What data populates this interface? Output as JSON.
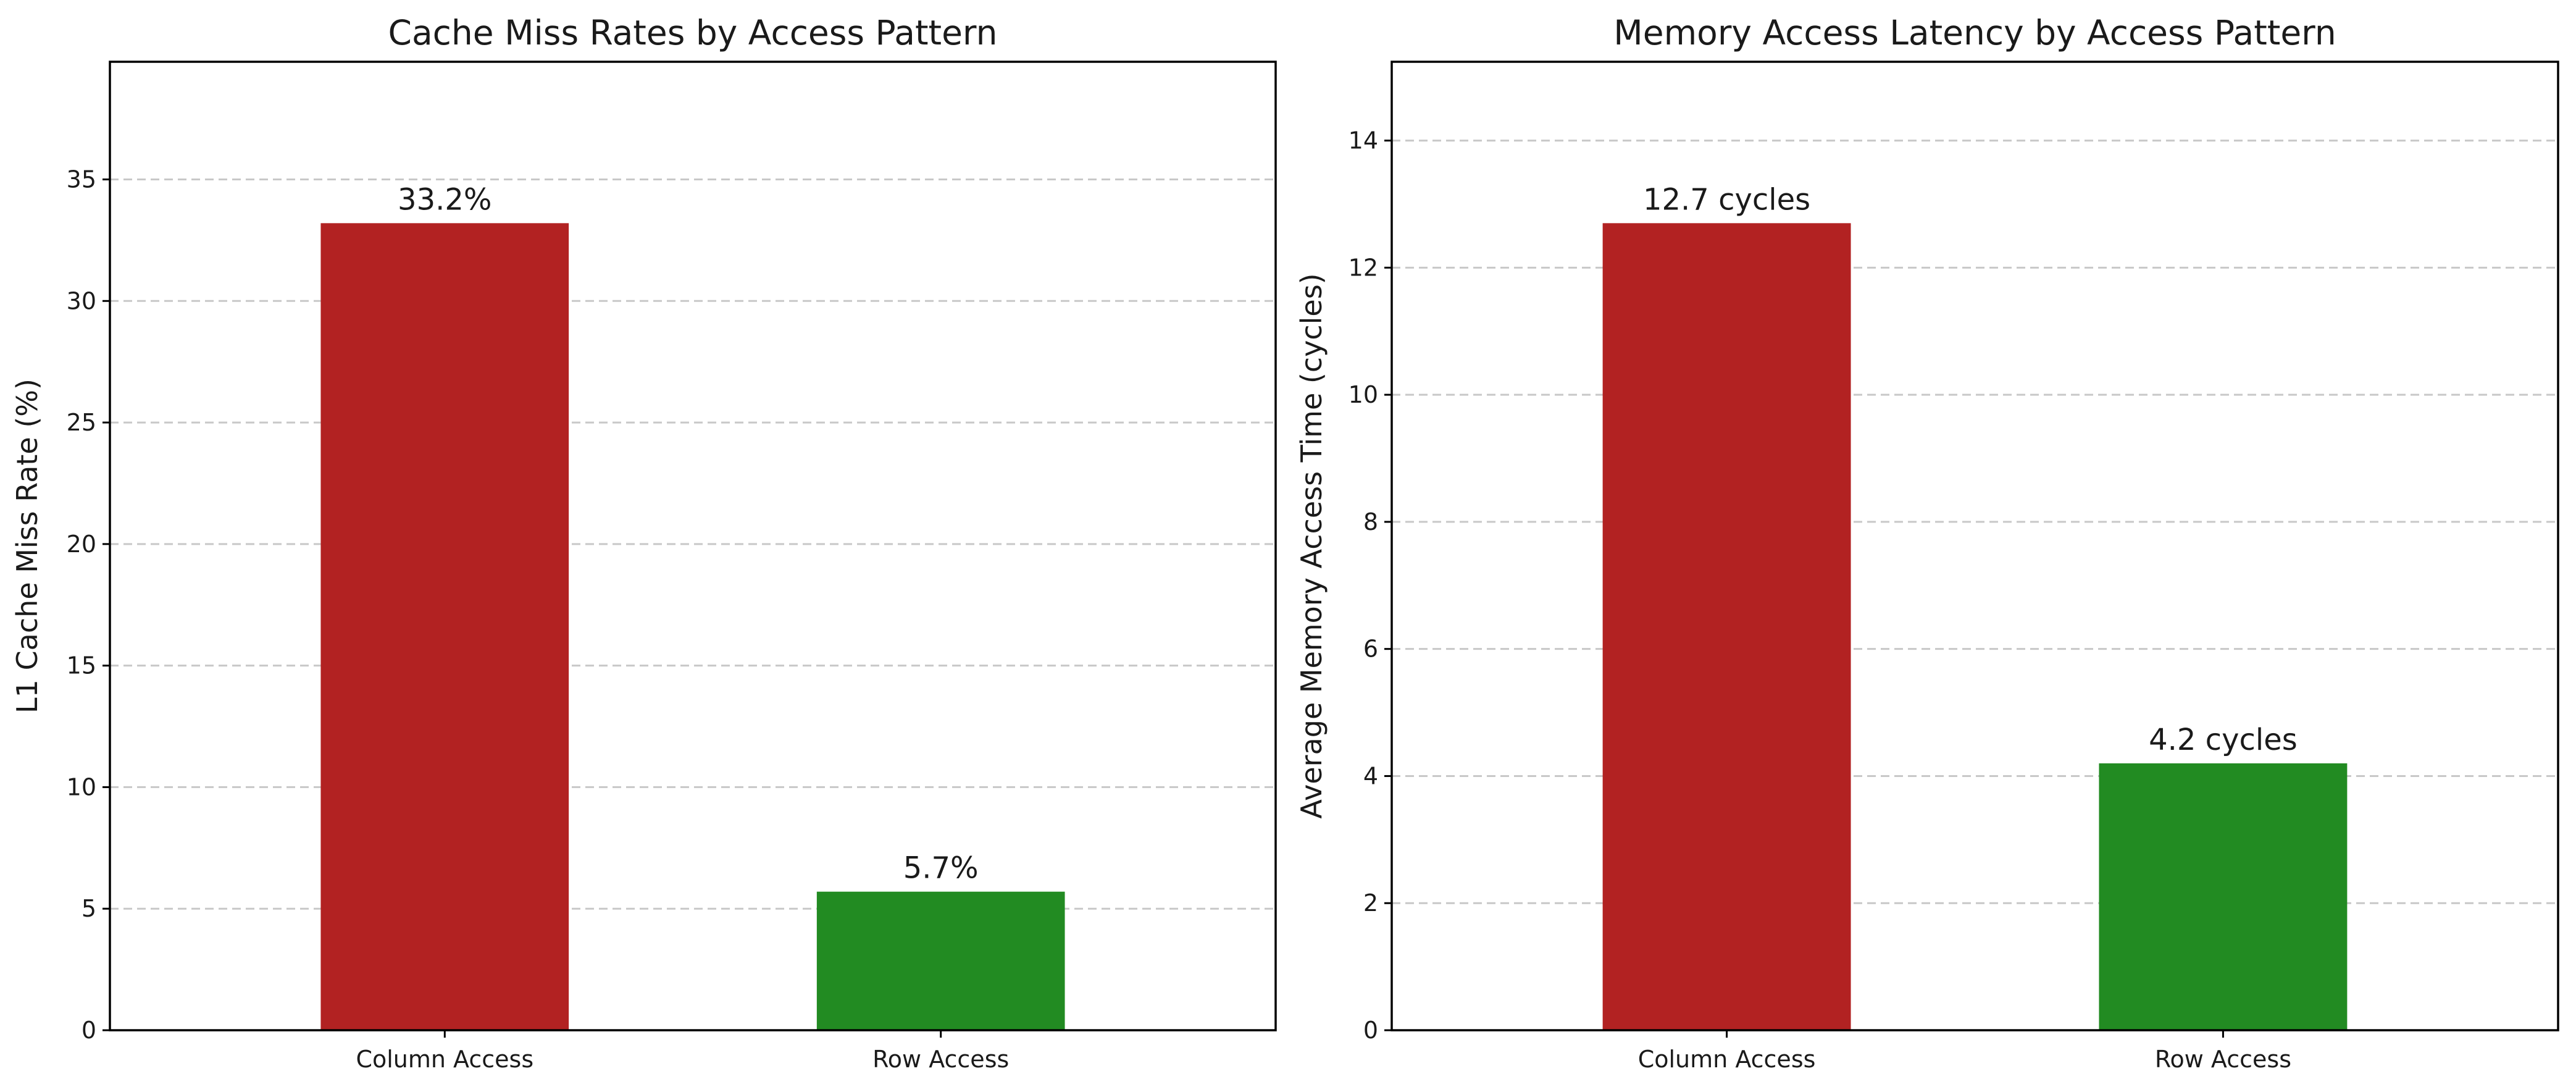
{
  "chart_data": [
    {
      "type": "bar",
      "title": "Cache Miss Rates by Access Pattern",
      "xlabel": "",
      "ylabel": "L1 Cache Miss Rate (%)",
      "categories": [
        "Column Access",
        "Row Access"
      ],
      "values": [
        33.2,
        5.7
      ],
      "value_labels": [
        "33.2%",
        "5.7%"
      ],
      "colors": [
        "#b22222",
        "#228b22"
      ],
      "ylim": [
        0,
        39.84
      ],
      "yticks": [
        0,
        5,
        10,
        15,
        20,
        25,
        30,
        35
      ],
      "grid": "y-dashed"
    },
    {
      "type": "bar",
      "title": "Memory Access Latency by Access Pattern",
      "xlabel": "",
      "ylabel": "Average Memory Access Time (cycles)",
      "categories": [
        "Column Access",
        "Row Access"
      ],
      "values": [
        12.7,
        4.2
      ],
      "value_labels": [
        "12.7 cycles",
        "4.2 cycles"
      ],
      "colors": [
        "#b22222",
        "#228b22"
      ],
      "ylim": [
        0,
        15.24
      ],
      "yticks": [
        0,
        2,
        4,
        6,
        8,
        10,
        12,
        14
      ],
      "grid": "y-dashed"
    }
  ]
}
